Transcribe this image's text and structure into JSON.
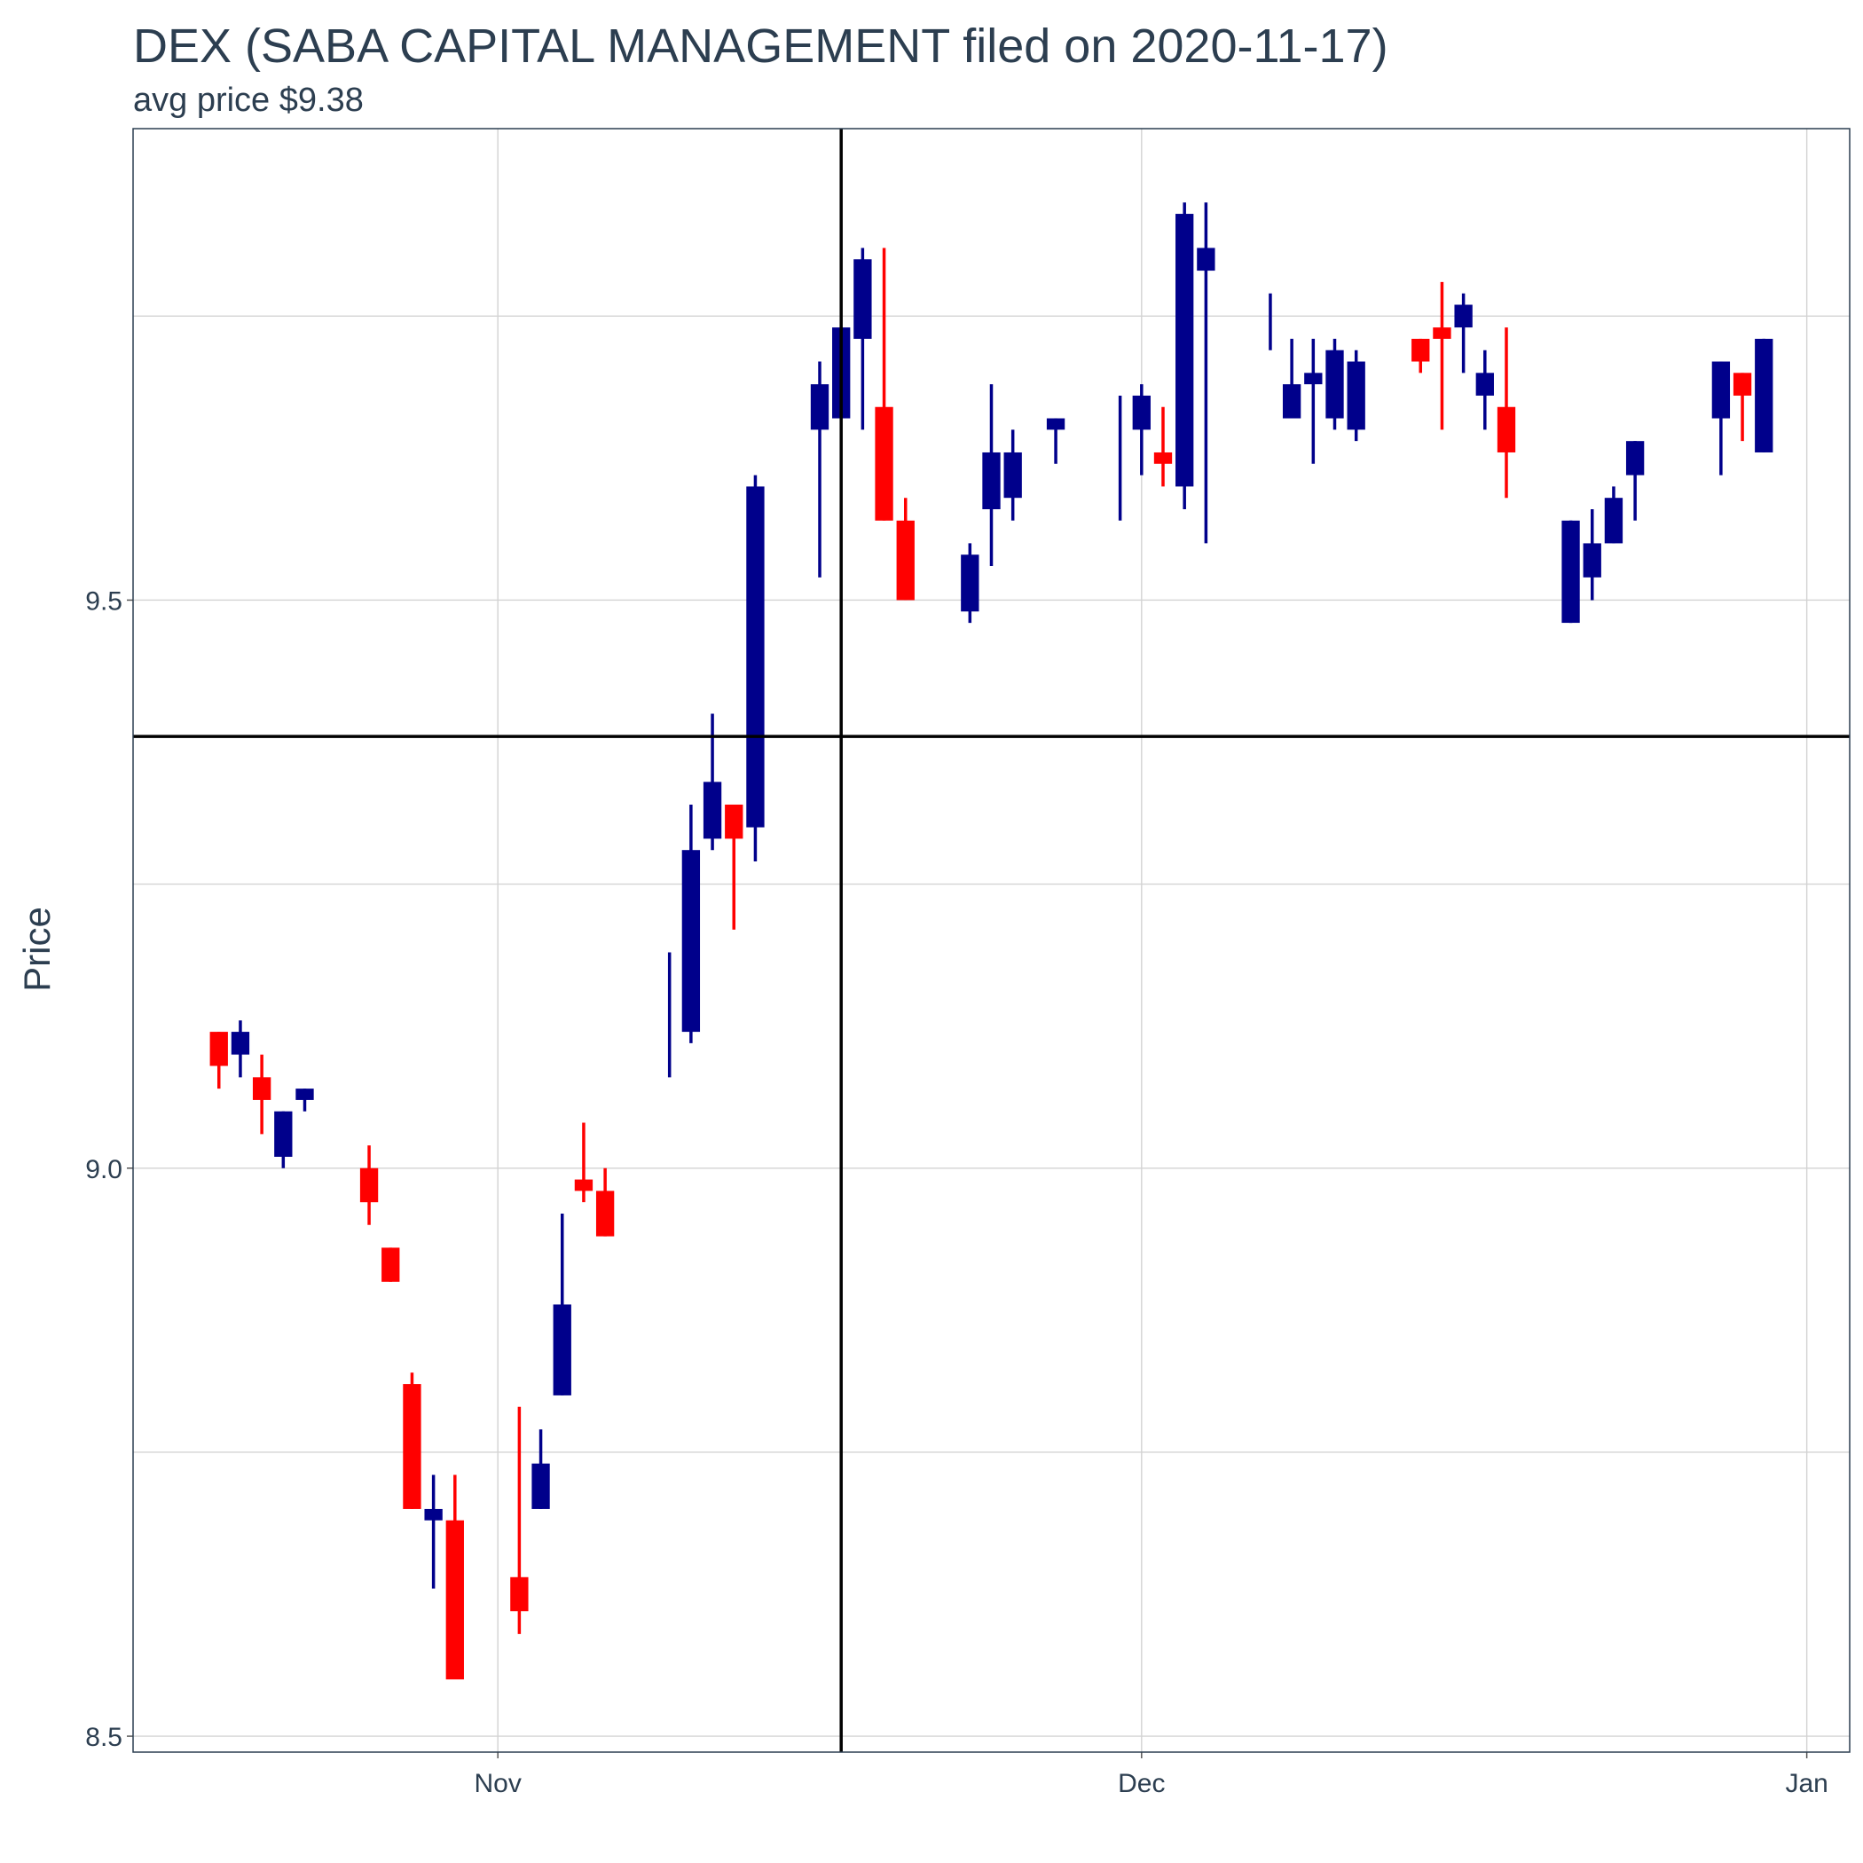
{
  "chart_data": {
    "type": "candlestick",
    "title": "DEX (SABA CAPITAL MANAGEMENT filed on 2020-11-17)",
    "subtitle": "avg price $9.38",
    "y_label": "Price",
    "up_color": "#00008b",
    "down_color": "#ff0000",
    "grid": true,
    "x": [
      "2020-10-19",
      "2020-10-20",
      "2020-10-21",
      "2020-10-22",
      "2020-10-23",
      "2020-10-26",
      "2020-10-27",
      "2020-10-28",
      "2020-10-29",
      "2020-10-30",
      "2020-11-02",
      "2020-11-03",
      "2020-11-04",
      "2020-11-05",
      "2020-11-06",
      "2020-11-09",
      "2020-11-10",
      "2020-11-11",
      "2020-11-12",
      "2020-11-13",
      "2020-11-16",
      "2020-11-17",
      "2020-11-18",
      "2020-11-19",
      "2020-11-20",
      "2020-11-23",
      "2020-11-24",
      "2020-11-25",
      "2020-11-27",
      "2020-11-30",
      "2020-12-01",
      "2020-12-02",
      "2020-12-03",
      "2020-12-04",
      "2020-12-07",
      "2020-12-08",
      "2020-12-09",
      "2020-12-10",
      "2020-12-11",
      "2020-12-14",
      "2020-12-15",
      "2020-12-16",
      "2020-12-17",
      "2020-12-18",
      "2020-12-21",
      "2020-12-22",
      "2020-12-23",
      "2020-12-24",
      "2020-12-28",
      "2020-12-29",
      "2020-12-30"
    ],
    "open": [
      9.12,
      9.1,
      9.08,
      9.01,
      9.06,
      9.0,
      8.93,
      8.81,
      8.69,
      8.69,
      8.64,
      8.7,
      8.8,
      8.99,
      8.98,
      9.15,
      9.12,
      9.29,
      9.32,
      9.3,
      9.65,
      9.66,
      9.73,
      9.67,
      9.57,
      9.49,
      9.58,
      9.59,
      9.65,
      9.63,
      9.65,
      9.63,
      9.6,
      9.79,
      9.74,
      9.66,
      9.69,
      9.66,
      9.65,
      9.73,
      9.74,
      9.74,
      9.68,
      9.67,
      9.48,
      9.52,
      9.55,
      9.61,
      9.66,
      9.7,
      9.63
    ],
    "high": [
      9.12,
      9.13,
      9.1,
      9.05,
      9.07,
      9.02,
      8.93,
      8.82,
      8.73,
      8.73,
      8.79,
      8.77,
      8.96,
      9.04,
      9.0,
      9.19,
      9.32,
      9.4,
      9.32,
      9.61,
      9.71,
      9.74,
      9.81,
      9.81,
      9.59,
      9.55,
      9.69,
      9.65,
      9.66,
      9.68,
      9.69,
      9.67,
      9.85,
      9.85,
      9.77,
      9.73,
      9.73,
      9.73,
      9.72,
      9.73,
      9.78,
      9.77,
      9.72,
      9.74,
      9.57,
      9.58,
      9.6,
      9.64,
      9.71,
      9.7,
      9.73
    ],
    "low": [
      9.07,
      9.08,
      9.03,
      9.0,
      9.05,
      8.95,
      8.9,
      8.7,
      8.63,
      8.55,
      8.59,
      8.7,
      8.8,
      8.97,
      8.94,
      9.08,
      9.11,
      9.28,
      9.21,
      9.27,
      9.52,
      9.66,
      9.65,
      9.57,
      9.5,
      9.48,
      9.53,
      9.57,
      9.62,
      9.57,
      9.61,
      9.6,
      9.58,
      9.55,
      9.72,
      9.66,
      9.62,
      9.65,
      9.64,
      9.7,
      9.65,
      9.7,
      9.65,
      9.59,
      9.48,
      9.5,
      9.55,
      9.57,
      9.61,
      9.64,
      9.63
    ],
    "close": [
      9.09,
      9.12,
      9.06,
      9.05,
      9.07,
      8.97,
      8.9,
      8.7,
      8.7,
      8.55,
      8.61,
      8.74,
      8.88,
      8.98,
      8.94,
      9.15,
      9.28,
      9.34,
      9.29,
      9.6,
      9.69,
      9.74,
      9.8,
      9.57,
      9.5,
      9.54,
      9.63,
      9.63,
      9.66,
      9.63,
      9.68,
      9.62,
      9.84,
      9.81,
      9.74,
      9.69,
      9.7,
      9.72,
      9.71,
      9.71,
      9.73,
      9.76,
      9.7,
      9.63,
      9.57,
      9.55,
      9.59,
      9.64,
      9.71,
      9.68,
      9.73
    ],
    "xlim": [
      "2020-10-15",
      "2021-01-03"
    ],
    "xticks": [
      {
        "value": "2020-11-01",
        "label": "Nov"
      },
      {
        "value": "2020-12-01",
        "label": "Dec"
      },
      {
        "value": "2021-01-01",
        "label": "Jan"
      }
    ],
    "ylim": [
      8.486,
      9.915
    ],
    "yticks": [
      {
        "value": 8.5,
        "label": "8.5"
      },
      {
        "value": 9.0,
        "label": "9.0"
      },
      {
        "value": 9.5,
        "label": "9.5"
      }
    ],
    "yminor": [
      8.75,
      9.25,
      9.75
    ],
    "hline": 9.38,
    "vline": "2020-11-17"
  }
}
